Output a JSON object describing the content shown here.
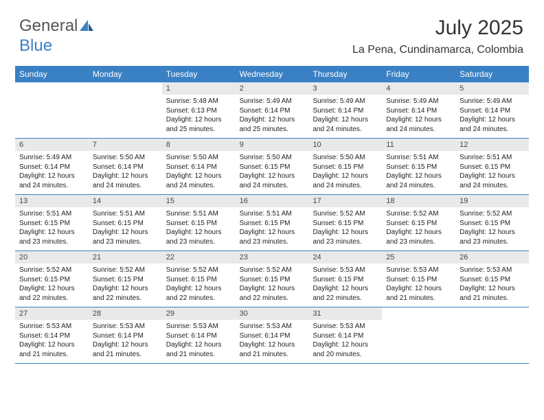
{
  "logo": {
    "text1": "General",
    "text2": "Blue"
  },
  "title": "July 2025",
  "location": "La Pena, Cundinamarca, Colombia",
  "colors": {
    "header_bg": "#3a80c4",
    "header_text": "#ffffff",
    "daynum_bg": "#e9e9e9",
    "border": "#3a80c4",
    "text": "#222222"
  },
  "columns": [
    "Sunday",
    "Monday",
    "Tuesday",
    "Wednesday",
    "Thursday",
    "Friday",
    "Saturday"
  ],
  "weeks": [
    [
      {
        "num": "",
        "sunrise": "",
        "sunset": "",
        "daylight": ""
      },
      {
        "num": "",
        "sunrise": "",
        "sunset": "",
        "daylight": ""
      },
      {
        "num": "1",
        "sunrise": "Sunrise: 5:48 AM",
        "sunset": "Sunset: 6:13 PM",
        "daylight": "Daylight: 12 hours and 25 minutes."
      },
      {
        "num": "2",
        "sunrise": "Sunrise: 5:49 AM",
        "sunset": "Sunset: 6:14 PM",
        "daylight": "Daylight: 12 hours and 25 minutes."
      },
      {
        "num": "3",
        "sunrise": "Sunrise: 5:49 AM",
        "sunset": "Sunset: 6:14 PM",
        "daylight": "Daylight: 12 hours and 24 minutes."
      },
      {
        "num": "4",
        "sunrise": "Sunrise: 5:49 AM",
        "sunset": "Sunset: 6:14 PM",
        "daylight": "Daylight: 12 hours and 24 minutes."
      },
      {
        "num": "5",
        "sunrise": "Sunrise: 5:49 AM",
        "sunset": "Sunset: 6:14 PM",
        "daylight": "Daylight: 12 hours and 24 minutes."
      }
    ],
    [
      {
        "num": "6",
        "sunrise": "Sunrise: 5:49 AM",
        "sunset": "Sunset: 6:14 PM",
        "daylight": "Daylight: 12 hours and 24 minutes."
      },
      {
        "num": "7",
        "sunrise": "Sunrise: 5:50 AM",
        "sunset": "Sunset: 6:14 PM",
        "daylight": "Daylight: 12 hours and 24 minutes."
      },
      {
        "num": "8",
        "sunrise": "Sunrise: 5:50 AM",
        "sunset": "Sunset: 6:14 PM",
        "daylight": "Daylight: 12 hours and 24 minutes."
      },
      {
        "num": "9",
        "sunrise": "Sunrise: 5:50 AM",
        "sunset": "Sunset: 6:15 PM",
        "daylight": "Daylight: 12 hours and 24 minutes."
      },
      {
        "num": "10",
        "sunrise": "Sunrise: 5:50 AM",
        "sunset": "Sunset: 6:15 PM",
        "daylight": "Daylight: 12 hours and 24 minutes."
      },
      {
        "num": "11",
        "sunrise": "Sunrise: 5:51 AM",
        "sunset": "Sunset: 6:15 PM",
        "daylight": "Daylight: 12 hours and 24 minutes."
      },
      {
        "num": "12",
        "sunrise": "Sunrise: 5:51 AM",
        "sunset": "Sunset: 6:15 PM",
        "daylight": "Daylight: 12 hours and 24 minutes."
      }
    ],
    [
      {
        "num": "13",
        "sunrise": "Sunrise: 5:51 AM",
        "sunset": "Sunset: 6:15 PM",
        "daylight": "Daylight: 12 hours and 23 minutes."
      },
      {
        "num": "14",
        "sunrise": "Sunrise: 5:51 AM",
        "sunset": "Sunset: 6:15 PM",
        "daylight": "Daylight: 12 hours and 23 minutes."
      },
      {
        "num": "15",
        "sunrise": "Sunrise: 5:51 AM",
        "sunset": "Sunset: 6:15 PM",
        "daylight": "Daylight: 12 hours and 23 minutes."
      },
      {
        "num": "16",
        "sunrise": "Sunrise: 5:51 AM",
        "sunset": "Sunset: 6:15 PM",
        "daylight": "Daylight: 12 hours and 23 minutes."
      },
      {
        "num": "17",
        "sunrise": "Sunrise: 5:52 AM",
        "sunset": "Sunset: 6:15 PM",
        "daylight": "Daylight: 12 hours and 23 minutes."
      },
      {
        "num": "18",
        "sunrise": "Sunrise: 5:52 AM",
        "sunset": "Sunset: 6:15 PM",
        "daylight": "Daylight: 12 hours and 23 minutes."
      },
      {
        "num": "19",
        "sunrise": "Sunrise: 5:52 AM",
        "sunset": "Sunset: 6:15 PM",
        "daylight": "Daylight: 12 hours and 23 minutes."
      }
    ],
    [
      {
        "num": "20",
        "sunrise": "Sunrise: 5:52 AM",
        "sunset": "Sunset: 6:15 PM",
        "daylight": "Daylight: 12 hours and 22 minutes."
      },
      {
        "num": "21",
        "sunrise": "Sunrise: 5:52 AM",
        "sunset": "Sunset: 6:15 PM",
        "daylight": "Daylight: 12 hours and 22 minutes."
      },
      {
        "num": "22",
        "sunrise": "Sunrise: 5:52 AM",
        "sunset": "Sunset: 6:15 PM",
        "daylight": "Daylight: 12 hours and 22 minutes."
      },
      {
        "num": "23",
        "sunrise": "Sunrise: 5:52 AM",
        "sunset": "Sunset: 6:15 PM",
        "daylight": "Daylight: 12 hours and 22 minutes."
      },
      {
        "num": "24",
        "sunrise": "Sunrise: 5:53 AM",
        "sunset": "Sunset: 6:15 PM",
        "daylight": "Daylight: 12 hours and 22 minutes."
      },
      {
        "num": "25",
        "sunrise": "Sunrise: 5:53 AM",
        "sunset": "Sunset: 6:15 PM",
        "daylight": "Daylight: 12 hours and 21 minutes."
      },
      {
        "num": "26",
        "sunrise": "Sunrise: 5:53 AM",
        "sunset": "Sunset: 6:15 PM",
        "daylight": "Daylight: 12 hours and 21 minutes."
      }
    ],
    [
      {
        "num": "27",
        "sunrise": "Sunrise: 5:53 AM",
        "sunset": "Sunset: 6:14 PM",
        "daylight": "Daylight: 12 hours and 21 minutes."
      },
      {
        "num": "28",
        "sunrise": "Sunrise: 5:53 AM",
        "sunset": "Sunset: 6:14 PM",
        "daylight": "Daylight: 12 hours and 21 minutes."
      },
      {
        "num": "29",
        "sunrise": "Sunrise: 5:53 AM",
        "sunset": "Sunset: 6:14 PM",
        "daylight": "Daylight: 12 hours and 21 minutes."
      },
      {
        "num": "30",
        "sunrise": "Sunrise: 5:53 AM",
        "sunset": "Sunset: 6:14 PM",
        "daylight": "Daylight: 12 hours and 21 minutes."
      },
      {
        "num": "31",
        "sunrise": "Sunrise: 5:53 AM",
        "sunset": "Sunset: 6:14 PM",
        "daylight": "Daylight: 12 hours and 20 minutes."
      },
      {
        "num": "",
        "sunrise": "",
        "sunset": "",
        "daylight": ""
      },
      {
        "num": "",
        "sunrise": "",
        "sunset": "",
        "daylight": ""
      }
    ]
  ]
}
